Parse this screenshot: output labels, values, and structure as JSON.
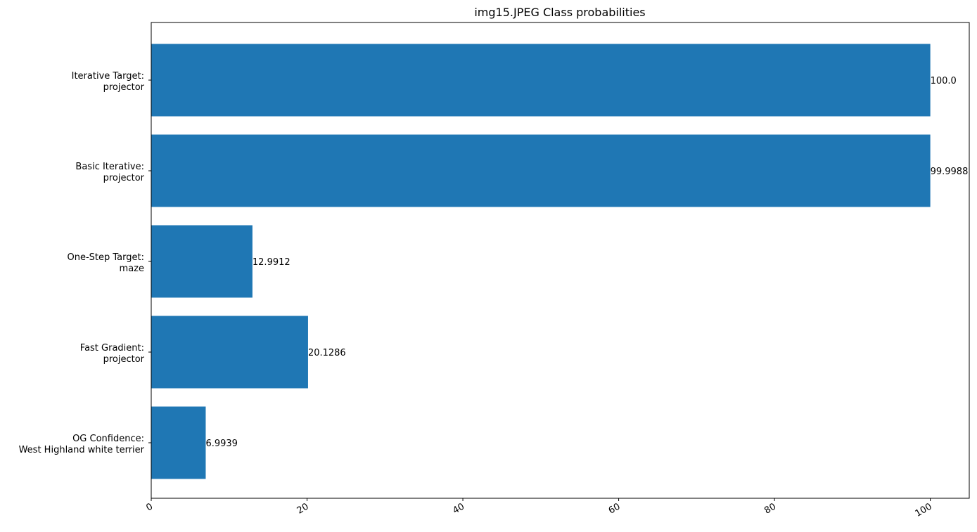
{
  "chart_data": {
    "type": "bar",
    "orientation": "horizontal",
    "title": "img15.JPEG Class probabilities",
    "xlabel": "",
    "ylabel": "",
    "xlim": [
      0,
      105
    ],
    "xticks": [
      0,
      20,
      40,
      60,
      80,
      100
    ],
    "xtick_labels": [
      "0",
      "20",
      "40",
      "60",
      "80",
      "100"
    ],
    "grid": false,
    "bar_color": "#1f77b4",
    "categories": [
      [
        "Iterative Target:",
        "projector"
      ],
      [
        "Basic Iterative:",
        "projector"
      ],
      [
        "One-Step Target:",
        "maze"
      ],
      [
        "Fast Gradient:",
        "projector"
      ],
      [
        "OG Confidence:",
        "West Highland white terrier"
      ]
    ],
    "values": [
      100.0,
      99.9988,
      12.9912,
      20.1286,
      6.9939
    ],
    "value_labels": [
      "100.0",
      "99.9988",
      "12.9912",
      "20.1286",
      "6.9939"
    ]
  }
}
